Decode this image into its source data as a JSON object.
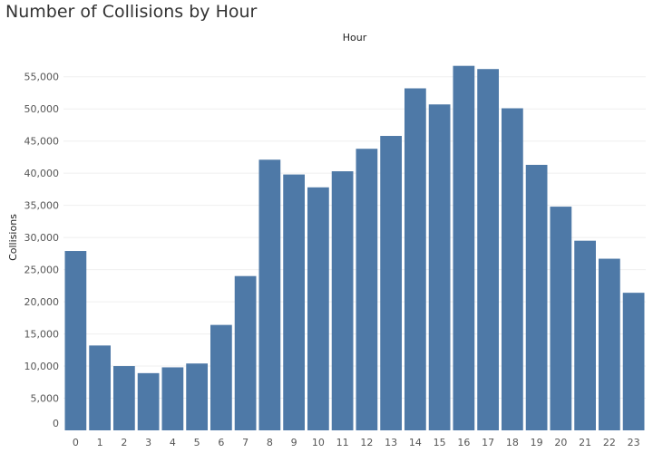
{
  "chart_data": {
    "type": "bar",
    "title": "Number of Collisions by Hour",
    "xlabel": "Hour",
    "ylabel": "Collisions",
    "categories": [
      "0",
      "1",
      "2",
      "3",
      "4",
      "5",
      "6",
      "7",
      "8",
      "9",
      "10",
      "11",
      "12",
      "13",
      "14",
      "15",
      "16",
      "17",
      "18",
      "19",
      "20",
      "21",
      "22",
      "23"
    ],
    "values": [
      27900,
      13200,
      10000,
      8900,
      9800,
      10400,
      16400,
      24000,
      42100,
      39800,
      37800,
      40300,
      43800,
      45800,
      53200,
      50700,
      56700,
      56200,
      50100,
      41300,
      34800,
      29500,
      26700,
      21400
    ],
    "ylim": [
      0,
      57500
    ],
    "yticks": [
      0,
      5000,
      10000,
      15000,
      20000,
      25000,
      30000,
      35000,
      40000,
      45000,
      50000,
      55000
    ],
    "ytick_labels": [
      "0",
      "5,000",
      "10,000",
      "15,000",
      "20,000",
      "25,000",
      "30,000",
      "35,000",
      "40,000",
      "45,000",
      "50,000",
      "55,000"
    ],
    "grid": true,
    "colors": {
      "bar": "#4e79a7",
      "grid": "#efefef"
    }
  }
}
